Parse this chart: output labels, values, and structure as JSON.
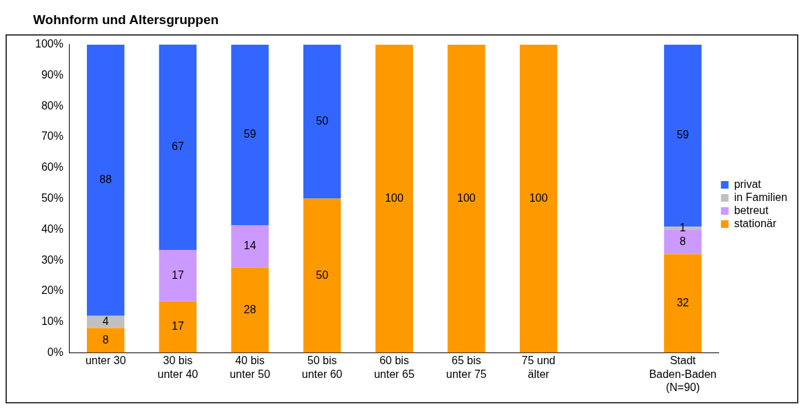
{
  "chart_data": {
    "type": "bar",
    "title": "Wohnform und Altersgruppen",
    "stacked": true,
    "legend": "right",
    "grid": false,
    "categories": [
      "unter 30",
      "30 bis unter 40",
      "40 bis unter 50",
      "50 bis unter 60",
      "60 bis unter 65",
      "65 bis unter 75",
      "75 und älter",
      null,
      "Stadt Baden-Baden (N=90)"
    ],
    "ylim": [
      0,
      100
    ],
    "yticks": [
      {
        "value": 0,
        "label": "0%"
      },
      {
        "value": 10,
        "label": "10%"
      },
      {
        "value": 20,
        "label": "20%"
      },
      {
        "value": 30,
        "label": "30%"
      },
      {
        "value": 40,
        "label": "40%"
      },
      {
        "value": 50,
        "label": "50%"
      },
      {
        "value": 60,
        "label": "60%"
      },
      {
        "value": 70,
        "label": "70%"
      },
      {
        "value": 80,
        "label": "80%"
      },
      {
        "value": 90,
        "label": "90%"
      },
      {
        "value": 100,
        "label": "100%"
      }
    ],
    "series": [
      {
        "name": "stationär",
        "color": "#ff9900",
        "values": [
          8,
          16.7,
          27.6,
          50,
          100,
          100,
          100,
          null,
          32
        ],
        "value_labels": [
          "8",
          "17",
          "28",
          "50",
          "100",
          "100",
          "100",
          null,
          "32"
        ]
      },
      {
        "name": "betreut",
        "color": "#cc99ff",
        "values": [
          null,
          16.7,
          13.8,
          null,
          null,
          null,
          null,
          null,
          8
        ],
        "value_labels": [
          null,
          "17",
          "14",
          null,
          null,
          null,
          null,
          null,
          "8"
        ]
      },
      {
        "name": "in Familien",
        "color": "#c0c0c0",
        "values": [
          4,
          null,
          null,
          null,
          null,
          null,
          null,
          null,
          1
        ],
        "value_labels": [
          "4",
          null,
          null,
          null,
          null,
          null,
          null,
          null,
          "1"
        ]
      },
      {
        "name": "privat",
        "color": "#3366ff",
        "values": [
          88,
          66.7,
          58.6,
          50,
          null,
          null,
          null,
          null,
          59
        ],
        "value_labels": [
          "88",
          "67",
          "59",
          "50",
          null,
          null,
          null,
          null,
          "59"
        ]
      }
    ]
  }
}
